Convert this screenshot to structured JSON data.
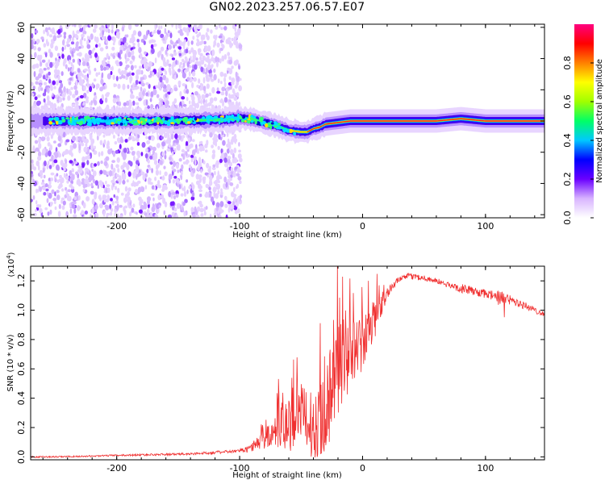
{
  "title": "GN02.2023.257.06.57.E07",
  "chart_data": [
    {
      "type": "heatmap",
      "description_of_layout": "spectrogram",
      "xlabel": "Height of straight line (km)",
      "ylabel": "Frequency (Hz)",
      "xlim": [
        -270,
        148
      ],
      "ylim": [
        -62,
        62
      ],
      "x_ticks": [
        -200,
        -100,
        0,
        100
      ],
      "x_tick_labels": [
        "-200",
        "-100",
        "0",
        "100"
      ],
      "y_ticks": [
        -60,
        -40,
        -20,
        0,
        20,
        40,
        60
      ],
      "y_tick_labels": [
        "-60",
        "-40",
        "-20",
        "0",
        "20",
        "40",
        "60"
      ],
      "colorbar": {
        "label": "Normalized spectral amplitude",
        "range": [
          0.0,
          1.0
        ],
        "ticks": [
          0.0,
          0.2,
          0.4,
          0.6,
          0.8
        ],
        "tick_labels": [
          "0.0",
          "0.2",
          "0.4",
          "0.6",
          "0.8"
        ],
        "colormap": [
          "#ffffff",
          "#d8b4ff",
          "#6a00ff",
          "#0000ff",
          "#00c8ff",
          "#00ff66",
          "#a0ff00",
          "#ffff00",
          "#ff8000",
          "#ff0000",
          "#ff0080"
        ]
      },
      "band_center_hz": [
        [
          -260,
          0
        ],
        [
          -230,
          0
        ],
        [
          -200,
          0
        ],
        [
          -160,
          0
        ],
        [
          -130,
          0.5
        ],
        [
          -110,
          1
        ],
        [
          -100,
          2
        ],
        [
          -90,
          1
        ],
        [
          -80,
          -1
        ],
        [
          -70,
          -3
        ],
        [
          -60,
          -6
        ],
        [
          -50,
          -7
        ],
        [
          -45,
          -7
        ],
        [
          -40,
          -5
        ],
        [
          -35,
          -4
        ],
        [
          -30,
          -2
        ],
        [
          -20,
          -1
        ],
        [
          -10,
          0
        ],
        [
          0,
          0
        ],
        [
          30,
          0
        ],
        [
          60,
          0
        ],
        [
          80,
          1.5
        ],
        [
          100,
          0
        ],
        [
          148,
          0
        ]
      ],
      "noise_region_x": [
        -270,
        -105
      ]
    },
    {
      "type": "line",
      "xlabel": "Height of straight line (km)",
      "ylabel": "SNR (10 * v/v)",
      "y_scale_label": "(x10",
      "y_scale_exponent": "4",
      "xlim": [
        -270,
        148
      ],
      "ylim": [
        -0.02,
        1.3
      ],
      "x_ticks": [
        -200,
        -100,
        0,
        100
      ],
      "x_tick_labels": [
        "-200",
        "-100",
        "0",
        "100"
      ],
      "y_ticks": [
        0.0,
        0.2,
        0.4,
        0.6,
        0.8,
        1.0,
        1.2
      ],
      "y_tick_labels": [
        "0.0",
        "0.2",
        "0.4",
        "0.6",
        "0.8",
        "1.0",
        "1.2"
      ],
      "line_color": "#f03030",
      "series": [
        {
          "x": [
            -270,
            -250,
            -220,
            -200,
            -170,
            -140,
            -120,
            -100,
            -95,
            -90,
            -85,
            -80,
            -75,
            -70,
            -65,
            -60,
            -55,
            -50,
            -45,
            -40,
            -35,
            -30,
            -25,
            -20,
            -15,
            -10,
            -5,
            0,
            5,
            10,
            15,
            20,
            25,
            30,
            35,
            40,
            50,
            60,
            70,
            80,
            90,
            100,
            110,
            120,
            130,
            140,
            148
          ],
          "y": [
            0.0,
            0.0,
            0.005,
            0.01,
            0.015,
            0.02,
            0.03,
            0.04,
            0.05,
            0.07,
            0.1,
            0.12,
            0.16,
            0.2,
            0.24,
            0.25,
            0.26,
            0.3,
            0.28,
            0.22,
            0.3,
            0.4,
            0.5,
            0.62,
            0.7,
            0.72,
            0.75,
            0.8,
            0.85,
            0.95,
            1.05,
            1.12,
            1.17,
            1.21,
            1.23,
            1.23,
            1.22,
            1.2,
            1.17,
            1.15,
            1.13,
            1.11,
            1.09,
            1.07,
            1.04,
            1.0,
            0.97
          ],
          "noise_amplitude": [
            0.005,
            0.005,
            0.005,
            0.006,
            0.007,
            0.008,
            0.01,
            0.01,
            0.02,
            0.03,
            0.04,
            0.06,
            0.08,
            0.12,
            0.15,
            0.17,
            0.2,
            0.2,
            0.2,
            0.2,
            0.25,
            0.3,
            0.3,
            0.3,
            0.28,
            0.22,
            0.2,
            0.18,
            0.15,
            0.12,
            0.08,
            0.04,
            0.025,
            0.02,
            0.02,
            0.02,
            0.02,
            0.02,
            0.02,
            0.03,
            0.03,
            0.03,
            0.05,
            0.04,
            0.03,
            0.02,
            0.02
          ]
        }
      ]
    }
  ]
}
